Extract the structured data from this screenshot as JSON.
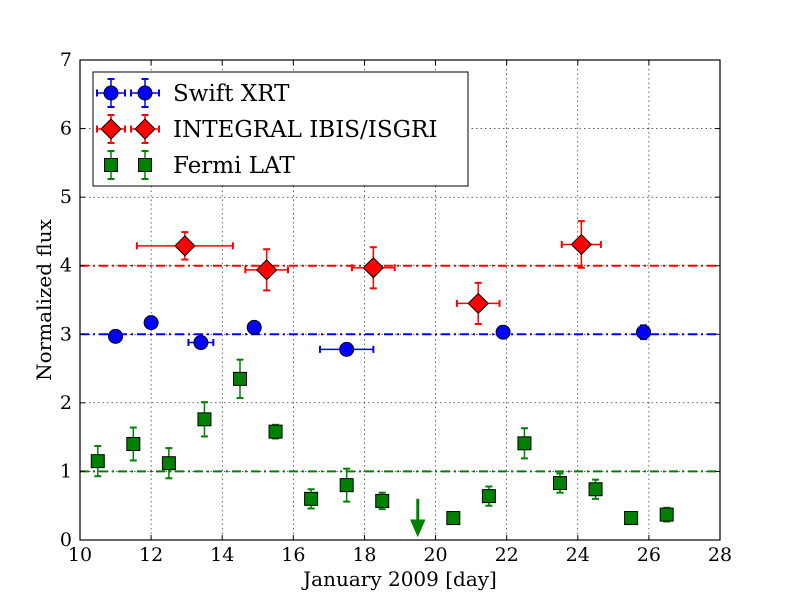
{
  "chart_data": {
    "type": "scatter",
    "xlabel": "January 2009 [day]",
    "ylabel": "Normalized flux",
    "xlim": [
      10,
      28
    ],
    "ylim": [
      0,
      7
    ],
    "xticks": [
      "10",
      "12",
      "14",
      "16",
      "18",
      "20",
      "22",
      "24",
      "26",
      "28"
    ],
    "yticks": [
      "0",
      "1",
      "2",
      "3",
      "4",
      "5",
      "6",
      "7"
    ],
    "grid": true,
    "legend_position": "top-left",
    "series": [
      {
        "name": "Swift XRT",
        "marker": "circle",
        "color": "#0000ff",
        "reference_level": 3.0,
        "points": [
          {
            "x": 11.0,
            "y": 2.97,
            "yerr": 0.06,
            "xerr": 0.0
          },
          {
            "x": 12.0,
            "y": 3.17,
            "yerr": 0.06,
            "xerr": 0.0
          },
          {
            "x": 13.4,
            "y": 2.88,
            "yerr": 0.06,
            "xerr": 0.35
          },
          {
            "x": 14.9,
            "y": 3.1,
            "yerr": 0.08,
            "xerr": 0.0
          },
          {
            "x": 17.5,
            "y": 2.78,
            "yerr": 0.04,
            "xerr": 0.75
          },
          {
            "x": 21.9,
            "y": 3.03,
            "yerr": 0.05,
            "xerr": 0.0
          },
          {
            "x": 25.85,
            "y": 3.03,
            "yerr": 0.1,
            "xerr": 0.0
          }
        ]
      },
      {
        "name": "INTEGRAL IBIS/ISGRI",
        "marker": "diamond",
        "color": "#ff0000",
        "reference_level": 4.0,
        "points": [
          {
            "x": 12.95,
            "y": 4.29,
            "yerr": 0.2,
            "xerr": 1.35
          },
          {
            "x": 15.25,
            "y": 3.94,
            "yerr": 0.3,
            "xerr": 0.6
          },
          {
            "x": 18.25,
            "y": 3.97,
            "yerr": 0.3,
            "xerr": 0.6
          },
          {
            "x": 21.2,
            "y": 3.45,
            "yerr": 0.3,
            "xerr": 0.6
          },
          {
            "x": 24.1,
            "y": 4.31,
            "yerr": 0.34,
            "xerr": 0.55
          }
        ]
      },
      {
        "name": "Fermi LAT",
        "marker": "square",
        "color": "#008000",
        "reference_level": 1.0,
        "points": [
          {
            "x": 10.5,
            "y": 1.15,
            "yerr": 0.22,
            "xerr": 0.0
          },
          {
            "x": 11.5,
            "y": 1.4,
            "yerr": 0.24,
            "xerr": 0.0
          },
          {
            "x": 12.5,
            "y": 1.12,
            "yerr": 0.22,
            "xerr": 0.0
          },
          {
            "x": 13.5,
            "y": 1.76,
            "yerr": 0.25,
            "xerr": 0.0
          },
          {
            "x": 14.5,
            "y": 2.35,
            "yerr": 0.28,
            "xerr": 0.0
          },
          {
            "x": 15.5,
            "y": 1.58,
            "yerr": 0.1,
            "xerr": 0.0
          },
          {
            "x": 16.5,
            "y": 0.6,
            "yerr": 0.14,
            "xerr": 0.0
          },
          {
            "x": 17.5,
            "y": 0.8,
            "yerr": 0.24,
            "xerr": 0.0
          },
          {
            "x": 18.5,
            "y": 0.57,
            "yerr": 0.12,
            "xerr": 0.0
          },
          {
            "x": 20.5,
            "y": 0.32,
            "yerr": 0.0,
            "xerr": 0.0
          },
          {
            "x": 21.5,
            "y": 0.64,
            "yerr": 0.14,
            "xerr": 0.0
          },
          {
            "x": 22.5,
            "y": 1.41,
            "yerr": 0.22,
            "xerr": 0.0
          },
          {
            "x": 23.5,
            "y": 0.83,
            "yerr": 0.14,
            "xerr": 0.0
          },
          {
            "x": 24.5,
            "y": 0.74,
            "yerr": 0.14,
            "xerr": 0.0
          },
          {
            "x": 25.5,
            "y": 0.32,
            "yerr": 0.0,
            "xerr": 0.0
          },
          {
            "x": 26.5,
            "y": 0.37,
            "yerr": 0.1,
            "xerr": 0.0
          }
        ],
        "upper_limits": [
          {
            "x": 19.5,
            "y": 0.6
          }
        ]
      }
    ]
  }
}
